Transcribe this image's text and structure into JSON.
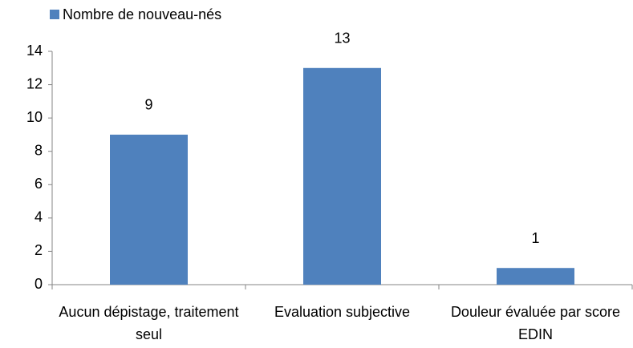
{
  "chart_data": {
    "type": "bar",
    "categories": [
      "Aucun dépistage, traitement seul",
      "Evaluation subjective",
      "Douleur évaluée par score EDIN"
    ],
    "series": [
      {
        "name": "Nombre de nouveau-nés",
        "color": "#4f81bd",
        "values": [
          9,
          13,
          1
        ]
      }
    ],
    "ylim": [
      0,
      14
    ],
    "yticks": [
      0,
      2,
      4,
      6,
      8,
      10,
      12,
      14
    ],
    "grid": false,
    "legend": "top-left",
    "data_labels": true
  }
}
